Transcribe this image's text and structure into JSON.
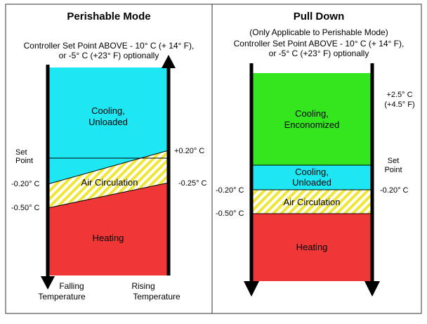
{
  "colors": {
    "cooling_unloaded": "#1EE6F2",
    "cooling_economized": "#33E61E",
    "heating": "#F03737",
    "air_circulation_a": "#FFFFFF",
    "air_circulation_b": "#F0E637",
    "line": "#000000",
    "frame": "#333333"
  },
  "left_panel": {
    "title": "Perishable Mode",
    "subtitle_line1": "Controller Set Point ABOVE - 10° C (+ 14° F),",
    "subtitle_line2": "or -5° C (+23° F) optionally",
    "zones": {
      "cooling": {
        "line1": "Cooling,",
        "line2": "Unloaded"
      },
      "air": "Air Circulation",
      "heating": "Heating"
    },
    "labels": {
      "set_point_line1": "Set",
      "set_point_line2": "Point",
      "minus_0_20": "-0.20° C",
      "minus_0_50": "-0.50° C",
      "plus_0_20": "+0.20° C",
      "minus_0_25": "-0.25° C"
    },
    "footer": {
      "falling_line1": "Falling",
      "falling_line2": "Temperature",
      "rising_line1": "Rising",
      "rising_line2": "Temperature"
    }
  },
  "right_panel": {
    "title": "Pull Down",
    "subtitle_line1": "(Only Applicable to Perishable Mode)",
    "subtitle_line2": "Controller Set Point ABOVE - 10° C (+ 14° F),",
    "subtitle_line3": "or -5° C (+23° F) optionally",
    "zones": {
      "economized": {
        "line1": "Cooling,",
        "line2": "Enconomized"
      },
      "unloaded": {
        "line1": "Cooling,",
        "line2": "Unloaded"
      },
      "air": "Air Circulation",
      "heating": "Heating"
    },
    "labels": {
      "plus_2_5_line1": "+2.5° C",
      "plus_2_5_line2": "(+4.5° F)",
      "set_point_line1": "Set",
      "set_point_line2": "Point",
      "minus_0_20_left": "-0.20° C",
      "minus_0_20_right": "-0.20° C",
      "minus_0_50": "-0.50° C"
    }
  }
}
